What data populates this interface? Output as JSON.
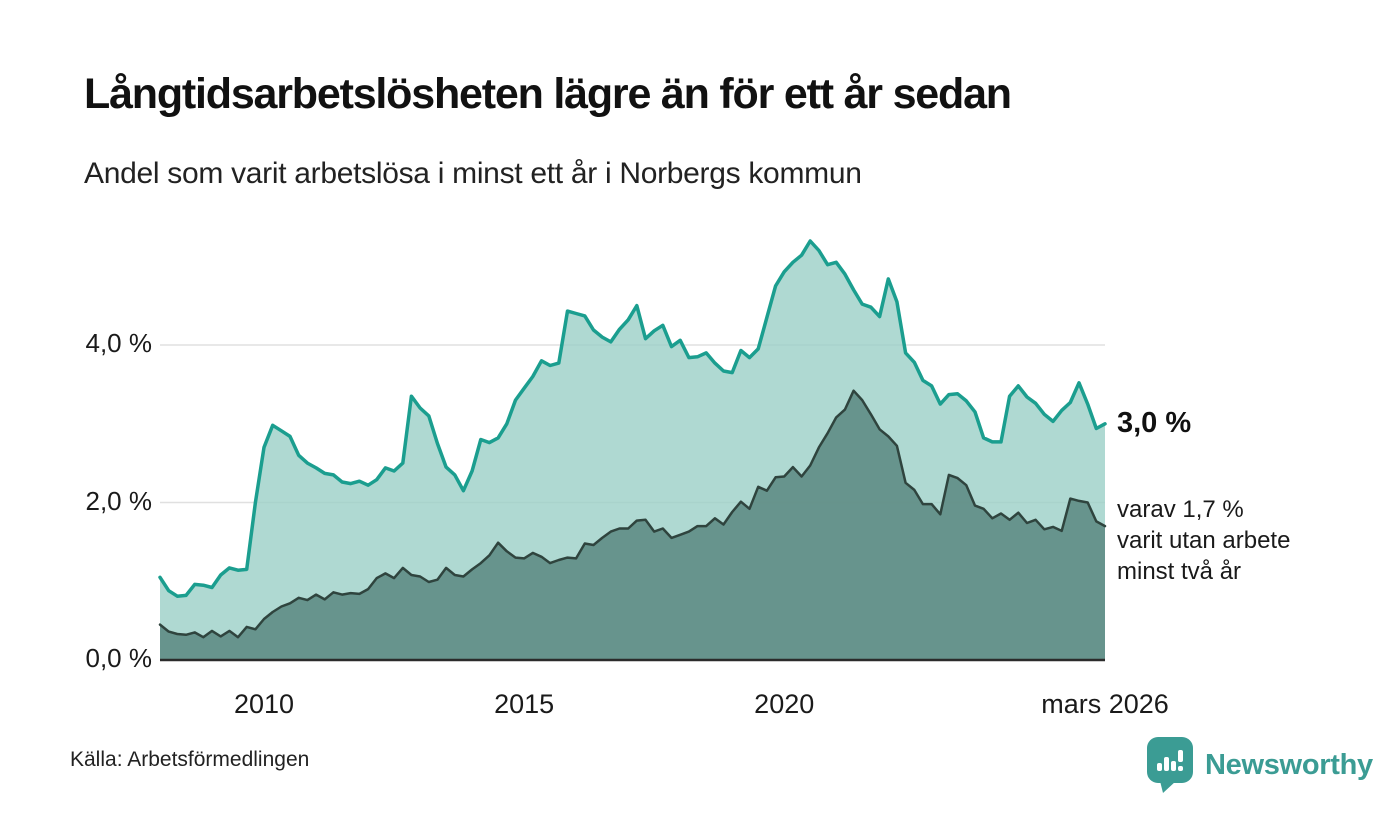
{
  "header": {
    "title": "Långtidsarbetslösheten lägre än för ett år sedan",
    "subtitle": "Andel som varit arbetslösa i minst ett år i Norbergs kommun"
  },
  "chart_data": {
    "type": "area",
    "title": "Långtidsarbetslösheten lägre än för ett år sedan",
    "subtitle": "Andel som varit arbetslösa i minst ett år i Norbergs kommun",
    "unit": "%",
    "x_start_year": 2008.0,
    "x_end_year": 2026.1667,
    "x_step_months": 2,
    "ylim": [
      0,
      5.6
    ],
    "grid": true,
    "legend_position": "none",
    "yticks": [
      {
        "value": 0,
        "label": "0,0 %"
      },
      {
        "value": 2,
        "label": "2,0 %"
      },
      {
        "value": 4,
        "label": "4,0 %"
      }
    ],
    "xticks": [
      {
        "year": 2010,
        "label": "2010"
      },
      {
        "year": 2015,
        "label": "2015"
      },
      {
        "year": 2020,
        "label": "2020"
      },
      {
        "year": 2026.1667,
        "label": "mars 2026"
      }
    ],
    "series": [
      {
        "name": "Arbetslösa minst ett år",
        "line_color": "#1b9e8f",
        "line_width": 3.5,
        "fill_color": "#9bcfc7",
        "fill_opacity": 0.8,
        "end_value": 3.0,
        "values": [
          1.05,
          0.88,
          0.81,
          0.82,
          0.96,
          0.95,
          0.92,
          1.08,
          1.17,
          1.14,
          1.15,
          2.0,
          2.7,
          2.98,
          2.91,
          2.84,
          2.6,
          2.5,
          2.44,
          2.37,
          2.35,
          2.26,
          2.24,
          2.27,
          2.22,
          2.29,
          2.44,
          2.4,
          2.5,
          3.35,
          3.2,
          3.1,
          2.75,
          2.45,
          2.35,
          2.15,
          2.4,
          2.8,
          2.76,
          2.82,
          3.0,
          3.3,
          3.45,
          3.6,
          3.8,
          3.74,
          3.77,
          4.43,
          4.4,
          4.37,
          4.19,
          4.1,
          4.04,
          4.2,
          4.32,
          4.5,
          4.08,
          4.18,
          4.25,
          3.98,
          4.06,
          3.84,
          3.85,
          3.9,
          3.77,
          3.67,
          3.65,
          3.93,
          3.84,
          3.95,
          4.35,
          4.75,
          4.93,
          5.05,
          5.14,
          5.32,
          5.2,
          5.02,
          5.05,
          4.9,
          4.7,
          4.52,
          4.48,
          4.36,
          4.84,
          4.55,
          3.9,
          3.78,
          3.55,
          3.48,
          3.25,
          3.37,
          3.38,
          3.29,
          3.15,
          2.82,
          2.77,
          2.77,
          3.35,
          3.48,
          3.34,
          3.26,
          3.12,
          3.03,
          3.17,
          3.27,
          3.52,
          3.25,
          2.94,
          3.0
        ]
      },
      {
        "name": "Arbetslösa minst två år",
        "line_color": "#2f443e",
        "line_width": 2.5,
        "fill_color": "#5d8a83",
        "fill_opacity": 0.88,
        "end_value": 1.7,
        "values": [
          0.45,
          0.36,
          0.33,
          0.32,
          0.35,
          0.29,
          0.37,
          0.3,
          0.37,
          0.29,
          0.42,
          0.39,
          0.52,
          0.61,
          0.68,
          0.72,
          0.79,
          0.76,
          0.83,
          0.77,
          0.86,
          0.83,
          0.85,
          0.84,
          0.9,
          1.04,
          1.1,
          1.04,
          1.17,
          1.08,
          1.06,
          0.99,
          1.02,
          1.17,
          1.08,
          1.06,
          1.15,
          1.23,
          1.33,
          1.49,
          1.38,
          1.3,
          1.29,
          1.36,
          1.31,
          1.23,
          1.27,
          1.3,
          1.29,
          1.48,
          1.46,
          1.55,
          1.63,
          1.67,
          1.67,
          1.77,
          1.78,
          1.63,
          1.67,
          1.55,
          1.59,
          1.63,
          1.7,
          1.7,
          1.8,
          1.72,
          1.88,
          2.01,
          1.92,
          2.2,
          2.15,
          2.32,
          2.33,
          2.45,
          2.33,
          2.47,
          2.7,
          2.88,
          3.08,
          3.18,
          3.42,
          3.3,
          3.12,
          2.93,
          2.84,
          2.72,
          2.25,
          2.16,
          1.98,
          1.98,
          1.85,
          2.35,
          2.31,
          2.22,
          1.96,
          1.92,
          1.8,
          1.86,
          1.78,
          1.87,
          1.74,
          1.78,
          1.66,
          1.69,
          1.64,
          2.05,
          2.02,
          2.0,
          1.76,
          1.7
        ]
      }
    ],
    "annotations": {
      "end_value_label": "3,0 %",
      "detail_lines": [
        "varav 1,7 %",
        "varit utan arbete",
        "minst två år"
      ]
    }
  },
  "footer": {
    "source": "Källa: Arbetsförmedlingen",
    "brand": "Newsworthy"
  },
  "colors": {
    "accent_teal": "#1b9e8f",
    "light_fill": "#abd6cf",
    "dark_line": "#2f443e",
    "dark_fill": "#6f9b94",
    "grid": "#e0e0e0",
    "axis": "#2b2b2b",
    "brand_teal": "#3b9c94"
  }
}
